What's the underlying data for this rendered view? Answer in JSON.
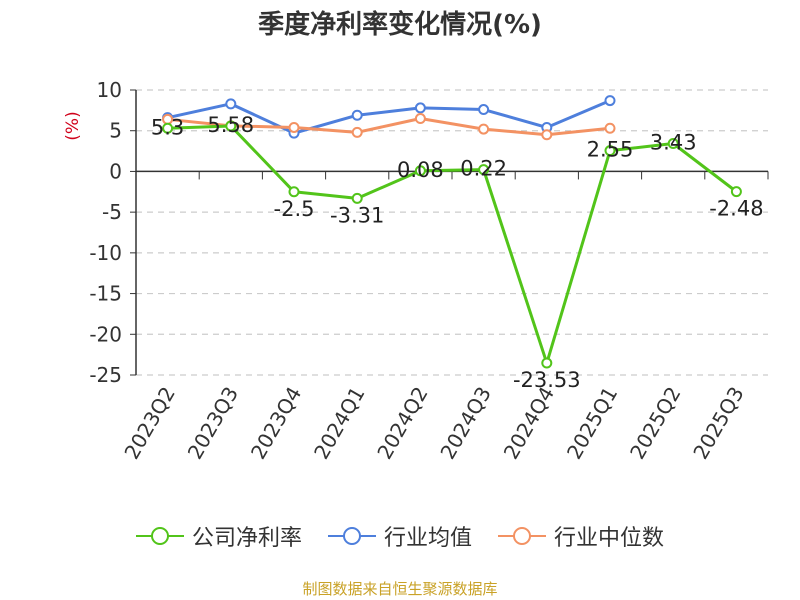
{
  "chart_data": {
    "type": "line",
    "title": "季度净利率变化情况(%)",
    "ylabel": "(%)",
    "xlabel": "",
    "ylim": [
      -25,
      10
    ],
    "yticks": [
      10,
      5,
      0,
      -5,
      -10,
      -15,
      -20,
      -25
    ],
    "categories": [
      "2023Q2",
      "2023Q3",
      "2023Q4",
      "2024Q1",
      "2024Q2",
      "2024Q3",
      "2024Q4",
      "2025Q1",
      "2025Q2",
      "2025Q3"
    ],
    "grid": true,
    "legend_position": "bottom",
    "series": [
      {
        "name": "公司净利率",
        "color": "#52c41a",
        "values": [
          5.3,
          5.58,
          -2.5,
          -3.31,
          0.08,
          0.22,
          -23.53,
          2.55,
          3.43,
          -2.48
        ],
        "labels": [
          "5.3",
          "5.58",
          "-2.5",
          "-3.31",
          "0.08",
          "0.22",
          "-23.53",
          "2.55",
          "3.43",
          "-2.48"
        ]
      },
      {
        "name": "行业均值",
        "color": "#4e7fdc",
        "values": [
          6.6,
          8.3,
          4.7,
          6.9,
          7.8,
          7.6,
          5.4,
          8.7,
          null,
          null
        ]
      },
      {
        "name": "行业中位数",
        "color": "#f39263",
        "values": [
          6.4,
          5.6,
          5.4,
          4.8,
          6.5,
          5.2,
          4.5,
          5.3,
          null,
          null
        ]
      }
    ]
  },
  "footer": {
    "source": "制图数据来自恒生聚源数据库"
  }
}
